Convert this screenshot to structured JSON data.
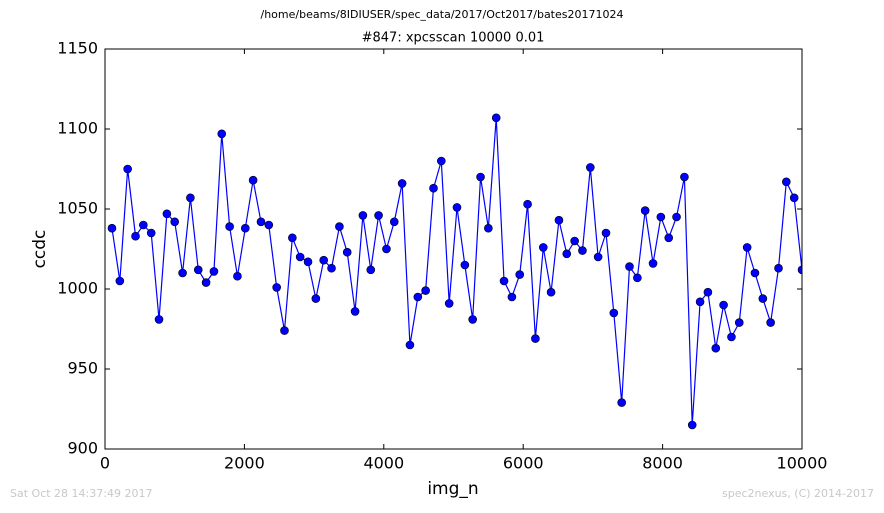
{
  "header": "/home/beams/8IDIUSER/spec_data/2017/Oct2017/bates20171024",
  "footer_left": "Sat Oct 28 14:37:49 2017",
  "footer_right": "spec2nexus, (C) 2014-2017",
  "chart_data": {
    "type": "line",
    "title": "#847: xpcsscan 10000 0.01",
    "x_label": "img_n",
    "y_label": "ccdc",
    "x": [
      100,
      213,
      325,
      438,
      550,
      663,
      775,
      888,
      1000,
      1113,
      1225,
      1338,
      1450,
      1563,
      1675,
      1788,
      1900,
      2013,
      2125,
      2238,
      2350,
      2463,
      2575,
      2688,
      2800,
      2913,
      3025,
      3138,
      3250,
      3363,
      3475,
      3588,
      3700,
      3813,
      3925,
      4038,
      4150,
      4263,
      4375,
      4488,
      4600,
      4713,
      4825,
      4938,
      5050,
      5163,
      5275,
      5388,
      5500,
      5613,
      5725,
      5838,
      5950,
      6063,
      6175,
      6288,
      6400,
      6513,
      6625,
      6738,
      6850,
      6963,
      7075,
      7188,
      7300,
      7413,
      7525,
      7638,
      7750,
      7863,
      7975,
      8088,
      8200,
      8313,
      8425,
      8538,
      8650,
      8763,
      8875,
      8988,
      9100,
      9213,
      9325,
      9438,
      9550,
      9663,
      9775,
      9888,
      10000
    ],
    "series": [
      {
        "name": "ccdc",
        "color": "#0000ff",
        "values": [
          1038,
          1005,
          1075,
          1033,
          1040,
          1035,
          981,
          1047,
          1042,
          1010,
          1057,
          1012,
          1004,
          1011,
          1097,
          1039,
          1008,
          1038,
          1068,
          1042,
          1040,
          1001,
          974,
          1032,
          1020,
          1017,
          994,
          1018,
          1013,
          1039,
          1023,
          986,
          1046,
          1012,
          1046,
          1025,
          1042,
          1066,
          965,
          995,
          999,
          1063,
          1080,
          991,
          1051,
          1015,
          981,
          1070,
          1038,
          1107,
          1005,
          995,
          1009,
          1053,
          969,
          1026,
          998,
          1043,
          1022,
          1030,
          1024,
          1076,
          1020,
          1035,
          985,
          929,
          1014,
          1007,
          1049,
          1016,
          1045,
          1032,
          1045,
          1070,
          915,
          992,
          998,
          963,
          990,
          970,
          979,
          1026,
          1010,
          994,
          979,
          1013,
          1067,
          1057,
          1012
        ]
      }
    ],
    "xlim": [
      0,
      10000
    ],
    "xticks": [
      0,
      2000,
      4000,
      6000,
      8000,
      10000
    ],
    "ylim": [
      900,
      1150
    ],
    "yticks": [
      900,
      950,
      1000,
      1050,
      1100,
      1150
    ]
  }
}
